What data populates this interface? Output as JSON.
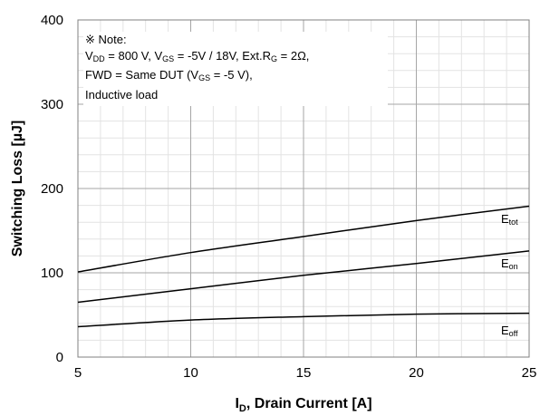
{
  "chart_data": {
    "type": "line",
    "xlabel_main": "I",
    "xlabel_sub": "D",
    "xlabel_rest": ", Drain Current [A]",
    "ylabel": "Switching Loss  [µJ]",
    "xlim": [
      5,
      25
    ],
    "ylim": [
      0,
      400
    ],
    "x_ticks": [
      "5",
      "10",
      "15",
      "20",
      "25"
    ],
    "y_ticks": [
      "0",
      "100",
      "200",
      "300",
      "400"
    ],
    "grid": true,
    "series": [
      {
        "name_main": "E",
        "name_sub": "tot",
        "x": [
          5,
          10,
          15,
          20,
          25
        ],
        "values": [
          101,
          124,
          143,
          162,
          179
        ]
      },
      {
        "name_main": "E",
        "name_sub": "on",
        "x": [
          5,
          10,
          15,
          20,
          25
        ],
        "values": [
          65,
          81,
          97,
          111,
          126
        ]
      },
      {
        "name_main": "E",
        "name_sub": "off",
        "x": [
          5,
          10,
          15,
          20,
          25
        ],
        "values": [
          36,
          44,
          48,
          51,
          52
        ]
      }
    ],
    "note": {
      "line1": "※ Note:",
      "line2_a": "V",
      "line2_b": "DD",
      "line2_c": " = 800 V, V",
      "line2_d": "GS",
      "line2_e": " = -5V / 18V, Ext.R",
      "line2_f": "G",
      "line2_g": " = 2Ω,",
      "line3_a": "FWD = Same DUT (V",
      "line3_b": "GS",
      "line3_c": " = -5 V),",
      "line4": "Inductive load"
    }
  },
  "colors": {
    "line": "#000000",
    "grid": "#a6a6a6",
    "axis": "#808080"
  }
}
